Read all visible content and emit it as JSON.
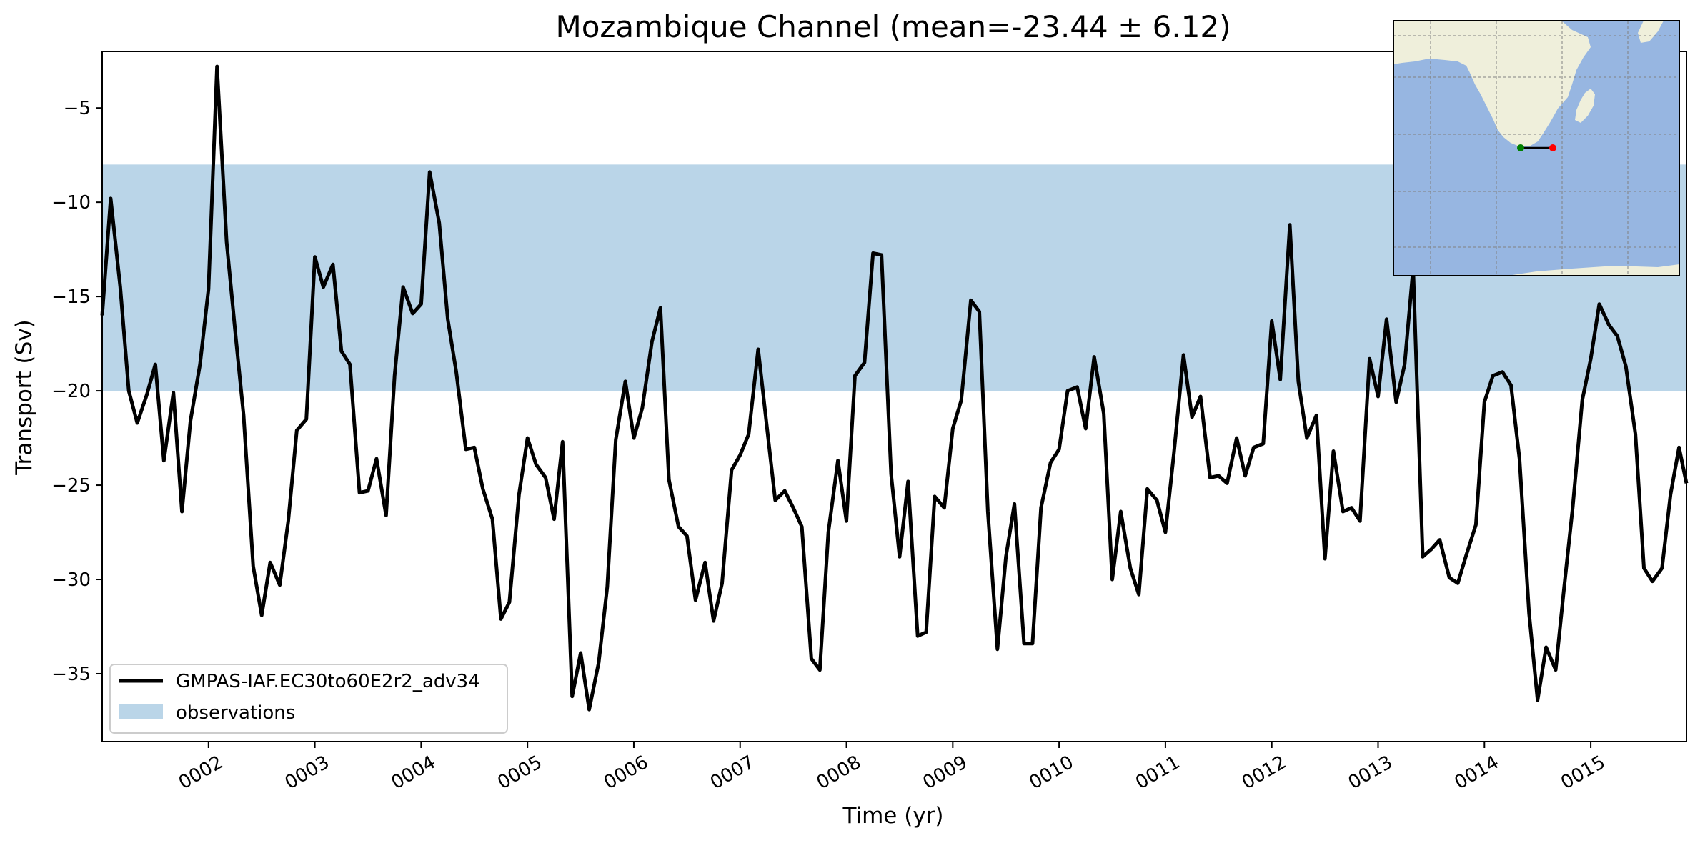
{
  "chart_data": {
    "type": "line",
    "title": "Mozambique Channel (mean=-23.44 ± 6.12)",
    "xlabel": "Time (yr)",
    "ylabel": "Transport (Sv)",
    "xlim": [
      1.0,
      15.9
    ],
    "ylim": [
      -38.6,
      -2.0
    ],
    "yticks": [
      -35,
      -30,
      -25,
      -20,
      -15,
      -10,
      -5
    ],
    "ytick_labels": [
      "−35",
      "−30",
      "−25",
      "−20",
      "−15",
      "−10",
      "−5"
    ],
    "xticks": [
      2,
      3,
      4,
      5,
      6,
      7,
      8,
      9,
      10,
      11,
      12,
      13,
      14,
      15
    ],
    "xtick_labels": [
      "0002",
      "0003",
      "0004",
      "0005",
      "0006",
      "0007",
      "0008",
      "0009",
      "0010",
      "0011",
      "0012",
      "0013",
      "0014",
      "0015"
    ],
    "observations_band": [
      -20,
      -8
    ],
    "legend": "lower-left",
    "series": [
      {
        "name": "GMPAS-IAF.EC30to60E2r2_adv34",
        "color": "#000000",
        "x": [
          1.0,
          1.08,
          1.17,
          1.25,
          1.33,
          1.42,
          1.5,
          1.58,
          1.67,
          1.75,
          1.83,
          1.92,
          2.0,
          2.08,
          2.17,
          2.25,
          2.33,
          2.42,
          2.5,
          2.58,
          2.67,
          2.75,
          2.83,
          2.92,
          3.0,
          3.08,
          3.17,
          3.25,
          3.33,
          3.42,
          3.5,
          3.58,
          3.67,
          3.75,
          3.83,
          3.92,
          4.0,
          4.08,
          4.17,
          4.25,
          4.33,
          4.42,
          4.5,
          4.58,
          4.67,
          4.75,
          4.83,
          4.92,
          5.0,
          5.08,
          5.17,
          5.25,
          5.33,
          5.42,
          5.5,
          5.58,
          5.67,
          5.75,
          5.83,
          5.92,
          6.0,
          6.08,
          6.17,
          6.25,
          6.33,
          6.42,
          6.5,
          6.58,
          6.67,
          6.75,
          6.83,
          6.92,
          7.0,
          7.08,
          7.17,
          7.25,
          7.33,
          7.42,
          7.5,
          7.58,
          7.67,
          7.75,
          7.83,
          7.92,
          8.0,
          8.08,
          8.17,
          8.25,
          8.33,
          8.42,
          8.5,
          8.58,
          8.67,
          8.75,
          8.83,
          8.92,
          9.0,
          9.08,
          9.17,
          9.25,
          9.33,
          9.42,
          9.5,
          9.58,
          9.67,
          9.75,
          9.83,
          9.92,
          10.0,
          10.08,
          10.17,
          10.25,
          10.33,
          10.42,
          10.5,
          10.58,
          10.67,
          10.75,
          10.83,
          10.92,
          11.0,
          11.08,
          11.17,
          11.25,
          11.33,
          11.42,
          11.5,
          11.58,
          11.67,
          11.75,
          11.83,
          11.92,
          12.0,
          12.08,
          12.17,
          12.25,
          12.33,
          12.42,
          12.5,
          12.58,
          12.67,
          12.75,
          12.83,
          12.92,
          13.0,
          13.08,
          13.17,
          13.25,
          13.33,
          13.42,
          13.5,
          13.58,
          13.67,
          13.75,
          13.83,
          13.92,
          14.0,
          14.08,
          14.17,
          14.25,
          14.33,
          14.42,
          14.5,
          14.58,
          14.67,
          14.75,
          14.83,
          14.92,
          15.0,
          15.08,
          15.17,
          15.25,
          15.33,
          15.42,
          15.5,
          15.58,
          15.67,
          15.75,
          15.83,
          15.9
        ],
        "values": [
          -16.0,
          -9.8,
          -14.5,
          -20.0,
          -21.7,
          -20.2,
          -18.6,
          -23.7,
          -20.1,
          -26.4,
          -21.6,
          -18.6,
          -14.6,
          -2.8,
          -12.1,
          -16.8,
          -21.3,
          -29.3,
          -31.9,
          -29.1,
          -30.3,
          -26.9,
          -22.1,
          -21.5,
          -12.9,
          -14.5,
          -13.3,
          -17.9,
          -18.6,
          -25.4,
          -25.3,
          -23.6,
          -26.6,
          -19.2,
          -14.5,
          -15.9,
          -15.4,
          -8.4,
          -11.1,
          -16.2,
          -19.0,
          -23.1,
          -23.0,
          -25.2,
          -26.8,
          -32.1,
          -31.2,
          -25.5,
          -22.5,
          -23.9,
          -24.6,
          -26.8,
          -22.7,
          -36.2,
          -33.9,
          -36.9,
          -34.4,
          -30.4,
          -22.6,
          -19.5,
          -22.5,
          -20.9,
          -17.4,
          -15.6,
          -24.7,
          -27.2,
          -27.7,
          -31.1,
          -29.1,
          -32.2,
          -30.2,
          -24.2,
          -23.4,
          -22.3,
          -17.8,
          -21.8,
          -25.8,
          -25.3,
          -26.2,
          -27.2,
          -34.2,
          -34.8,
          -27.5,
          -23.7,
          -26.9,
          -19.2,
          -18.5,
          -12.7,
          -12.8,
          -24.4,
          -28.8,
          -24.8,
          -33.0,
          -32.8,
          -25.6,
          -26.2,
          -22.0,
          -20.5,
          -15.2,
          -15.8,
          -26.4,
          -33.7,
          -28.8,
          -26.0,
          -33.4,
          -33.4,
          -26.2,
          -23.8,
          -23.1,
          -20.0,
          -19.8,
          -22.0,
          -18.2,
          -21.2,
          -30.0,
          -26.4,
          -29.4,
          -30.8,
          -25.2,
          -25.8,
          -27.5,
          -23.3,
          -18.1,
          -21.4,
          -20.3,
          -24.6,
          -24.5,
          -24.9,
          -22.5,
          -24.5,
          -23.0,
          -22.8,
          -16.3,
          -19.4,
          -11.2,
          -19.5,
          -22.5,
          -21.3,
          -28.9,
          -23.2,
          -26.4,
          -26.2,
          -26.9,
          -18.3,
          -20.3,
          -16.2,
          -20.6,
          -18.6,
          -13.5,
          -28.8,
          -28.4,
          -27.9,
          -29.9,
          -30.2,
          -28.7,
          -27.1,
          -20.6,
          -19.2,
          -19.0,
          -19.7,
          -23.6,
          -31.8,
          -36.4,
          -33.6,
          -34.8,
          -30.4,
          -26.2,
          -20.5,
          -18.3,
          -15.4,
          -16.5,
          -17.1,
          -18.7,
          -22.3,
          -29.4,
          -30.1,
          -29.4,
          -25.5,
          -23.0,
          -24.9
        ]
      }
    ],
    "legend_items": [
      {
        "label": "GMPAS-IAF.EC30to60E2r2_adv34",
        "kind": "line",
        "color": "#000000"
      },
      {
        "label": "observations",
        "kind": "patch",
        "color": "#bad5e8"
      }
    ],
    "inset_map": {
      "ocean_color": "#97b6e1",
      "land_color": "#efefdb",
      "transect_start_color": "#008000",
      "transect_end_color": "#ff0000"
    }
  }
}
